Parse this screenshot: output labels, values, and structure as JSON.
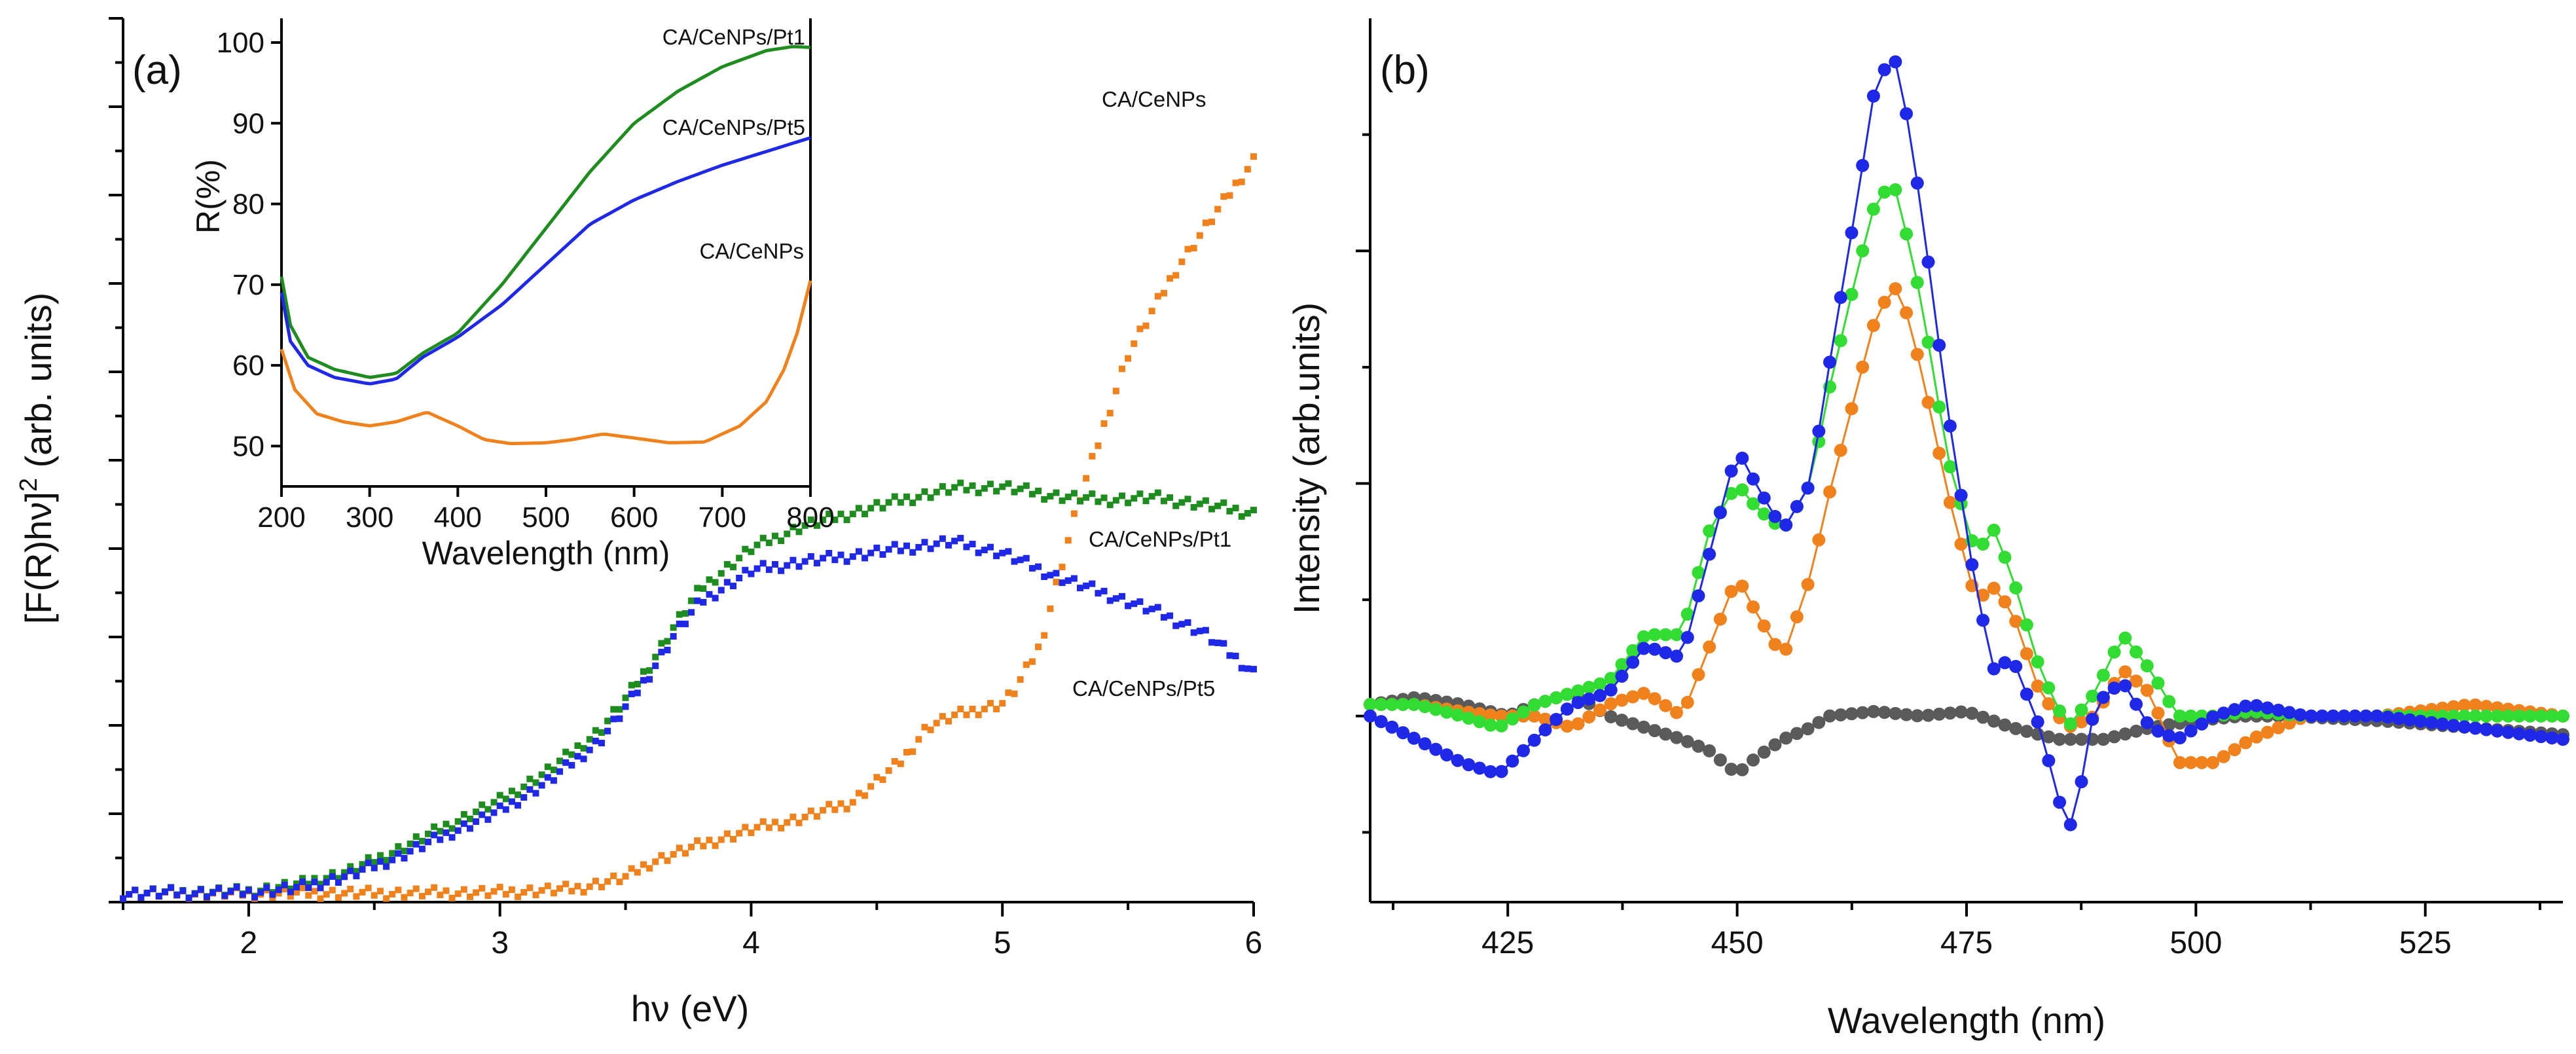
{
  "chart_data": [
    {
      "type": "scatter",
      "panel": "(a)",
      "title": "",
      "xlabel": "hν (eV)",
      "ylabel_parts": [
        "[F(R)hν]",
        "2",
        " (arb. units)"
      ],
      "xlim": [
        1.5,
        6.0
      ],
      "ylim": [
        0,
        100
      ],
      "xticks": [
        2,
        3,
        4,
        5,
        6
      ],
      "yticks_labeled": false,
      "grid": false,
      "legend": "none",
      "annotations": [
        {
          "text": "CA/CeNPs",
          "series": "CA/CeNPs",
          "x": 5.5,
          "y": 84.7
        },
        {
          "text": "CA/CeNPs/Pt1",
          "series": "CA/CeNPs/Pt1",
          "x": 5.5,
          "y": 33.4
        },
        {
          "text": "CA/CeNPs/Pt5",
          "series": "CA/CeNPs/Pt5",
          "x": 5.5,
          "y": 18.5
        }
      ],
      "series": [
        {
          "name": "CA/CeNPs",
          "color": "#f0821e",
          "x": [
            1.5,
            2.0,
            2.5,
            3.0,
            3.3,
            3.5,
            3.6,
            3.8,
            4.0,
            4.2,
            4.4,
            4.6,
            4.7,
            4.8,
            5.0,
            5.05,
            5.15,
            5.3,
            5.5,
            5.7,
            5.85,
            6.0
          ],
          "y": [
            1.0,
            1.0,
            1.0,
            1.1,
            1.5,
            2.8,
            4.5,
            6.5,
            8.2,
            9.5,
            11.3,
            16.0,
            19.8,
            21.0,
            22.5,
            24.0,
            29.0,
            45.0,
            62.0,
            72.0,
            78.0,
            84.0
          ]
        },
        {
          "name": "CA/CeNPs/Pt1",
          "color": "#1e8c1e",
          "x": [
            1.5,
            2.0,
            2.2,
            2.4,
            2.6,
            2.8,
            3.0,
            3.2,
            3.4,
            3.5,
            3.6,
            3.7,
            3.8,
            4.0,
            4.2,
            4.4,
            4.6,
            4.8,
            5.0,
            5.2,
            5.4,
            5.6,
            5.8,
            6.0
          ],
          "y": [
            1.0,
            1.2,
            2.0,
            3.5,
            6.0,
            8.8,
            11.5,
            15.0,
            19.5,
            23.0,
            27.0,
            31.5,
            35.5,
            40.0,
            42.5,
            44.0,
            45.5,
            46.8,
            47.0,
            46.0,
            45.5,
            45.8,
            45.0,
            44.0
          ]
        },
        {
          "name": "CA/CeNPs/Pt5",
          "color": "#1e28e6",
          "x": [
            1.5,
            2.0,
            2.2,
            2.4,
            2.6,
            2.8,
            3.0,
            3.2,
            3.4,
            3.5,
            3.6,
            3.7,
            3.8,
            4.0,
            4.2,
            4.4,
            4.6,
            4.8,
            5.0,
            5.2,
            5.4,
            5.6,
            5.8,
            6.0
          ],
          "y": [
            1.0,
            1.1,
            1.6,
            3.0,
            5.2,
            7.8,
            10.3,
            13.8,
            18.3,
            22.0,
            26.0,
            30.5,
            34.0,
            37.5,
            38.5,
            39.2,
            40.0,
            40.8,
            39.5,
            37.0,
            35.0,
            33.0,
            30.5,
            26.0
          ]
        }
      ]
    },
    {
      "type": "line",
      "panel": "inset of (a)",
      "title": "",
      "xlabel": "Wavelength (nm)",
      "ylabel": "R(%)",
      "xlim": [
        200,
        800
      ],
      "ylim": [
        45,
        103
      ],
      "xticks": [
        200,
        300,
        400,
        500,
        600,
        700,
        800
      ],
      "yticks": [
        50,
        60,
        70,
        80,
        90,
        100
      ],
      "grid": false,
      "legend": "none",
      "annotations": [
        {
          "text": "CA/CeNPs/Pt1",
          "series": "CA/CeNPs/Pt1"
        },
        {
          "text": "CA/CeNPs/Pt5",
          "series": "CA/CeNPs/Pt5"
        },
        {
          "text": "CA/CeNPs",
          "series": "CA/CeNPs"
        }
      ],
      "series": [
        {
          "name": "CA/CeNPs/Pt1",
          "color": "#1e8c1e",
          "x": [
            200,
            210,
            230,
            260,
            300,
            330,
            360,
            400,
            450,
            500,
            550,
            600,
            650,
            700,
            750,
            780,
            800
          ],
          "y": [
            71,
            65,
            61,
            59.5,
            58.5,
            59,
            61.5,
            64,
            70,
            77,
            84,
            90,
            94,
            97,
            99,
            99.5,
            99.4
          ]
        },
        {
          "name": "CA/CeNPs/Pt5",
          "color": "#1e28e6",
          "x": [
            200,
            210,
            230,
            260,
            300,
            330,
            360,
            400,
            450,
            500,
            550,
            600,
            650,
            700,
            750,
            800
          ],
          "y": [
            69,
            63,
            60,
            58.5,
            57.7,
            58.3,
            61,
            63.5,
            67.5,
            72.5,
            77.5,
            80.5,
            82.8,
            84.8,
            86.5,
            88.2
          ]
        },
        {
          "name": "CA/CeNPs",
          "color": "#f0821e",
          "x": [
            200,
            215,
            240,
            270,
            300,
            330,
            365,
            400,
            430,
            460,
            500,
            530,
            565,
            600,
            640,
            680,
            720,
            750,
            770,
            785,
            800
          ],
          "y": [
            62,
            57,
            54,
            53,
            52.5,
            53,
            54.2,
            52.5,
            50.8,
            50.3,
            50.4,
            50.8,
            51.5,
            51,
            50.4,
            50.5,
            52.5,
            55.5,
            59.5,
            64,
            70.5
          ]
        }
      ]
    },
    {
      "type": "line",
      "panel": "(b)",
      "title": "",
      "xlabel": "Wavelength (nm)",
      "ylabel": "Intensity (arb.units)",
      "xlim": [
        410,
        540
      ],
      "ylim": [
        -0.8,
        3.0
      ],
      "xticks": [
        425,
        450,
        475,
        500,
        525
      ],
      "yticks_labeled": false,
      "grid": false,
      "legend": "none",
      "series": [
        {
          "name": "blue",
          "color": "#1e28e6",
          "x": [
            410,
            415,
            420,
            424,
            428,
            432,
            436,
            440,
            444,
            447,
            450,
            452,
            455,
            458,
            460,
            463,
            465,
            467,
            468,
            470,
            473,
            476,
            478,
            480,
            483,
            486,
            487,
            489,
            492,
            495,
            498,
            502,
            506,
            512,
            520,
            530,
            540
          ],
          "y": [
            0.0,
            -0.1,
            -0.2,
            -0.25,
            -0.1,
            0.05,
            0.1,
            0.3,
            0.25,
            0.7,
            1.15,
            1.0,
            0.8,
            1.0,
            1.5,
            2.2,
            2.7,
            2.85,
            2.7,
            2.2,
            1.3,
            0.55,
            0.2,
            0.25,
            -0.05,
            -0.5,
            -0.4,
            0.05,
            0.15,
            -0.05,
            -0.1,
            0.0,
            0.05,
            0.0,
            0.0,
            -0.05,
            -0.1
          ]
        },
        {
          "name": "green",
          "color": "#32dc32",
          "x": [
            410,
            415,
            420,
            424,
            428,
            432,
            436,
            440,
            444,
            447,
            450,
            452,
            455,
            458,
            460,
            463,
            465,
            467,
            468,
            470,
            473,
            476,
            478,
            480,
            483,
            486,
            489,
            492,
            495,
            498,
            502,
            506,
            512,
            520,
            530,
            540
          ],
          "y": [
            0.05,
            0.05,
            0.0,
            -0.05,
            0.05,
            0.1,
            0.15,
            0.35,
            0.35,
            0.8,
            1.0,
            0.9,
            0.8,
            1.0,
            1.4,
            1.9,
            2.2,
            2.3,
            2.15,
            1.8,
            1.1,
            0.7,
            0.8,
            0.6,
            0.2,
            -0.05,
            0.1,
            0.35,
            0.2,
            0.0,
            0.0,
            0.02,
            0.0,
            0.0,
            0.0,
            0.0
          ]
        },
        {
          "name": "orange",
          "color": "#f0821e",
          "x": [
            410,
            415,
            420,
            424,
            428,
            432,
            436,
            440,
            444,
            447,
            450,
            452,
            455,
            458,
            460,
            463,
            465,
            467,
            468,
            470,
            473,
            476,
            478,
            480,
            483,
            486,
            489,
            492,
            495,
            498,
            502,
            506,
            512,
            520,
            530,
            540
          ],
          "y": [
            0.05,
            0.05,
            0.02,
            0.0,
            0.0,
            -0.05,
            0.05,
            0.1,
            0.0,
            0.3,
            0.6,
            0.45,
            0.25,
            0.6,
            0.95,
            1.4,
            1.7,
            1.85,
            1.8,
            1.5,
            0.95,
            0.5,
            0.55,
            0.45,
            0.1,
            -0.05,
            0.0,
            0.2,
            0.1,
            -0.2,
            -0.2,
            -0.1,
            0.0,
            0.0,
            0.05,
            0.0
          ]
        },
        {
          "name": "gray",
          "color": "#5a5a5a",
          "x": [
            410,
            415,
            420,
            425,
            428,
            432,
            436,
            440,
            444,
            447,
            450,
            452,
            455,
            458,
            460,
            465,
            470,
            475,
            480,
            485,
            490,
            495,
            500,
            505,
            510,
            520,
            530,
            540
          ],
          "y": [
            0.05,
            0.08,
            0.05,
            0.0,
            0.05,
            0.1,
            0.0,
            -0.05,
            -0.1,
            -0.15,
            -0.25,
            -0.18,
            -0.1,
            -0.05,
            0.0,
            0.02,
            0.0,
            0.02,
            -0.05,
            -0.1,
            -0.1,
            -0.05,
            -0.02,
            0.0,
            0.0,
            -0.02,
            -0.05,
            -0.08
          ]
        }
      ]
    }
  ]
}
